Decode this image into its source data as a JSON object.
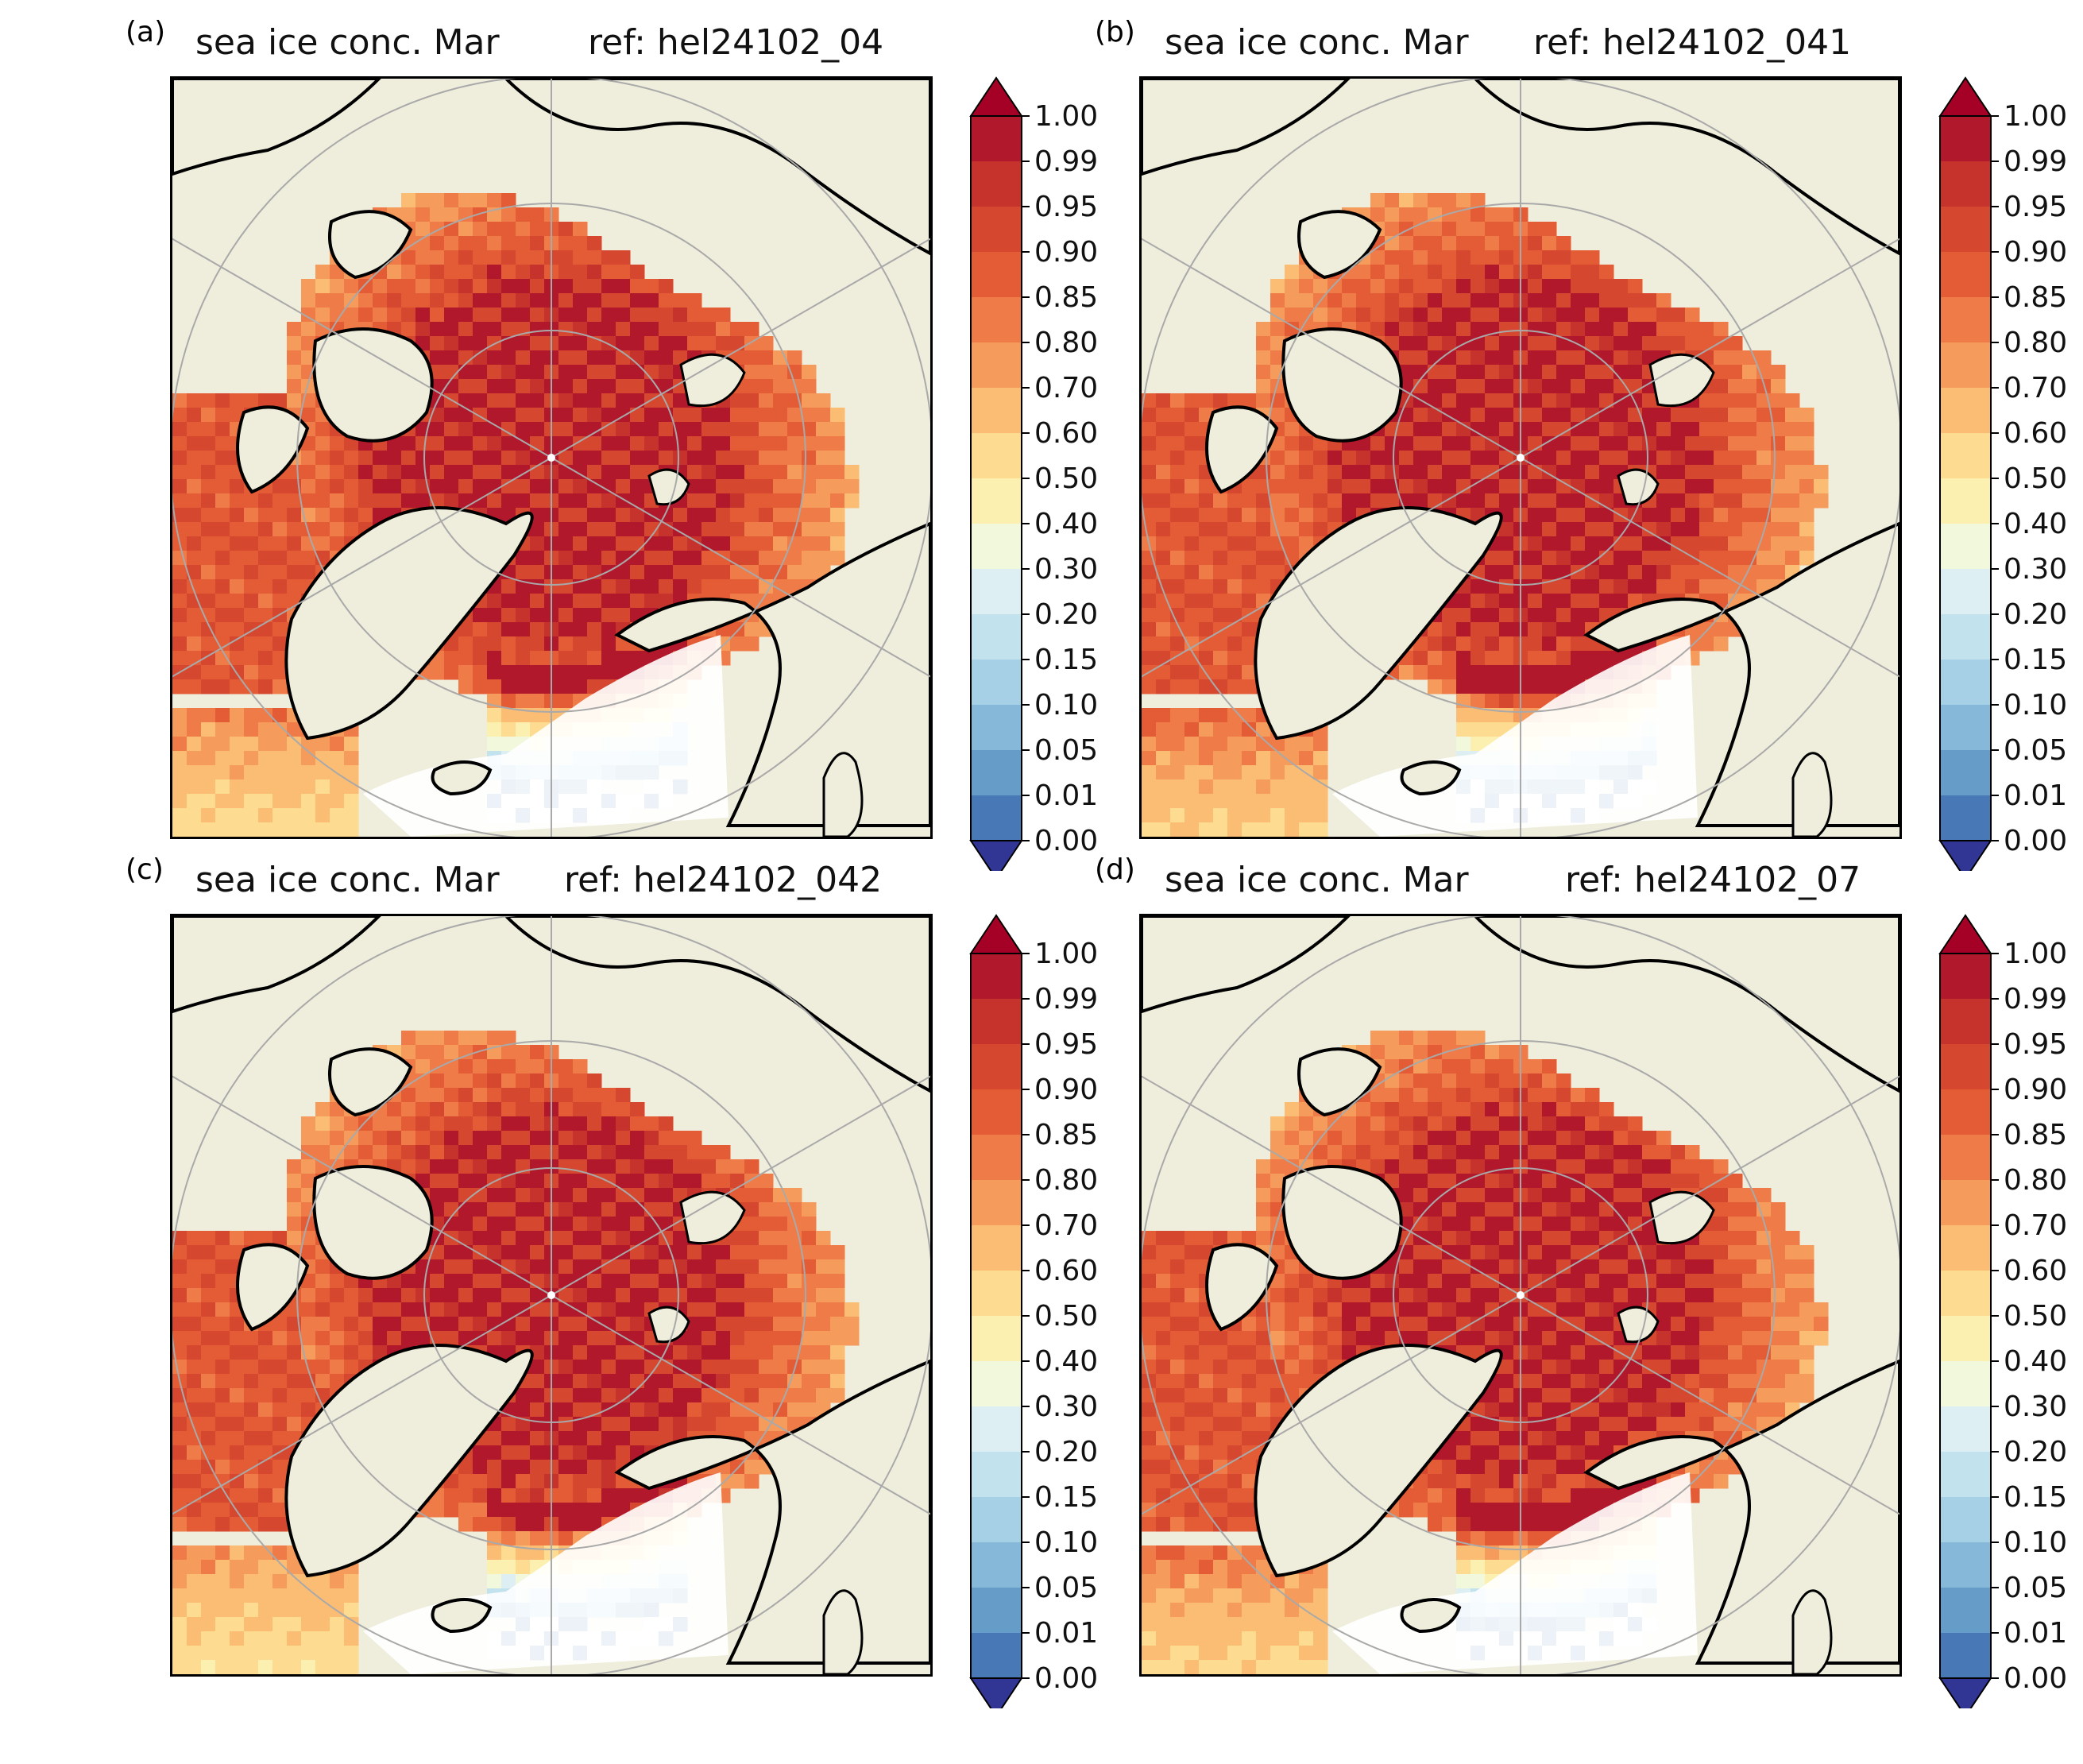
{
  "figure": {
    "panels": [
      {
        "letter": "(a)",
        "title_left": "sea ice conc. Mar",
        "title_right": "ref: hel24102_04"
      },
      {
        "letter": "(b)",
        "title_left": "sea ice conc. Mar",
        "title_right": "ref: hel24102_041"
      },
      {
        "letter": "(c)",
        "title_left": "sea ice conc. Mar",
        "title_right": "ref: hel24102_042"
      },
      {
        "letter": "(d)",
        "title_left": "sea ice conc. Mar",
        "title_right": "ref: hel24102_07"
      }
    ]
  },
  "colorbar": {
    "levels": [
      "1.00",
      "0.99",
      "0.95",
      "0.90",
      "0.85",
      "0.80",
      "0.70",
      "0.60",
      "0.50",
      "0.40",
      "0.30",
      "0.20",
      "0.15",
      "0.10",
      "0.05",
      "0.01",
      "0.00"
    ],
    "colors": [
      "#b2182b",
      "#c6322c",
      "#d6472f",
      "#e45c35",
      "#ef7b48",
      "#f59c5c",
      "#fbbd74",
      "#fddc91",
      "#fbf0b0",
      "#f1f8dc",
      "#ddeff2",
      "#c2e2ee",
      "#a5d0e5",
      "#86b9d9",
      "#659cc8",
      "#4878b6"
    ],
    "extend_max_color": "#a50026",
    "extend_min_color": "#313695",
    "map_colors": {
      "land": "#efeddb",
      "open_water": "#ffffff",
      "coast": "#000000",
      "grid": "#a9a9a9"
    }
  }
}
